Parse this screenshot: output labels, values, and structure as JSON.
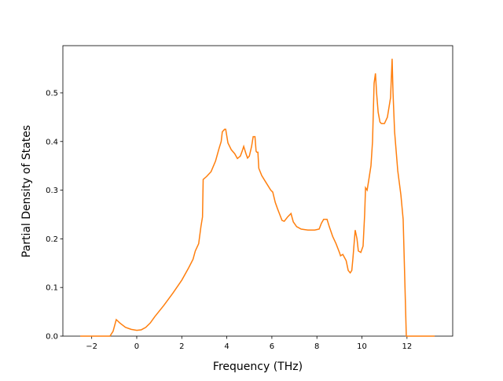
{
  "chart_data": {
    "type": "line",
    "x_label": "Frequency (THz)",
    "y_label": "Partial Density of States",
    "x": [
      -2.51,
      -1.19,
      -1.05,
      -0.91,
      -0.75,
      -0.5,
      -0.25,
      0,
      0.2,
      0.4,
      0.6,
      0.8,
      1.2,
      1.6,
      2.0,
      2.3,
      2.5,
      2.6,
      2.75,
      2.85,
      2.92,
      2.95,
      3.1,
      3.3,
      3.5,
      3.65,
      3.75,
      3.8,
      3.9,
      3.95,
      4.05,
      4.2,
      4.35,
      4.47,
      4.6,
      4.68,
      4.75,
      4.85,
      4.92,
      5.0,
      5.1,
      5.17,
      5.25,
      5.3,
      5.33,
      5.38,
      5.42,
      5.55,
      5.75,
      5.95,
      6.04,
      6.15,
      6.25,
      6.35,
      6.45,
      6.55,
      6.7,
      6.85,
      6.95,
      7.1,
      7.3,
      7.6,
      7.9,
      8.1,
      8.2,
      8.3,
      8.37,
      8.45,
      8.55,
      8.7,
      8.85,
      8.95,
      9.0,
      9.05,
      9.15,
      9.3,
      9.39,
      9.48,
      9.55,
      9.6,
      9.7,
      9.78,
      9.84,
      9.95,
      10.05,
      10.12,
      10.16,
      10.23,
      10.3,
      10.4,
      10.47,
      10.54,
      10.6,
      10.65,
      10.72,
      10.8,
      10.86,
      11.0,
      11.13,
      11.27,
      11.34,
      11.38,
      11.45,
      11.59,
      11.73,
      11.83,
      11.97,
      13.23
    ],
    "values": [
      0,
      0,
      0.01,
      0.034,
      0.027,
      0.018,
      0.014,
      0.012,
      0.013,
      0.018,
      0.027,
      0.04,
      0.063,
      0.088,
      0.115,
      0.14,
      0.158,
      0.175,
      0.19,
      0.225,
      0.245,
      0.322,
      0.328,
      0.338,
      0.36,
      0.385,
      0.4,
      0.42,
      0.425,
      0.425,
      0.397,
      0.383,
      0.375,
      0.365,
      0.37,
      0.38,
      0.39,
      0.375,
      0.366,
      0.37,
      0.39,
      0.41,
      0.41,
      0.38,
      0.378,
      0.378,
      0.345,
      0.33,
      0.315,
      0.3,
      0.296,
      0.275,
      0.262,
      0.25,
      0.238,
      0.236,
      0.245,
      0.252,
      0.235,
      0.225,
      0.22,
      0.218,
      0.218,
      0.22,
      0.232,
      0.24,
      0.24,
      0.24,
      0.225,
      0.205,
      0.19,
      0.178,
      0.172,
      0.165,
      0.168,
      0.155,
      0.135,
      0.13,
      0.135,
      0.16,
      0.218,
      0.2,
      0.175,
      0.172,
      0.185,
      0.25,
      0.305,
      0.3,
      0.32,
      0.35,
      0.4,
      0.52,
      0.54,
      0.5,
      0.46,
      0.44,
      0.437,
      0.437,
      0.45,
      0.49,
      0.57,
      0.5,
      0.42,
      0.34,
      0.29,
      0.24,
      0,
      0
    ],
    "color": "#ff7f0e",
    "xlim": [
      -3.28,
      14.03
    ],
    "ylim": [
      0,
      0.597
    ],
    "xticks": [
      {
        "value": -2,
        "label": "−2"
      },
      0,
      2,
      4,
      6,
      8,
      10,
      12
    ],
    "yticks": [
      {
        "value": 0,
        "label": "0.0"
      },
      0.1,
      0.2,
      0.3,
      0.4,
      0.5
    ]
  }
}
